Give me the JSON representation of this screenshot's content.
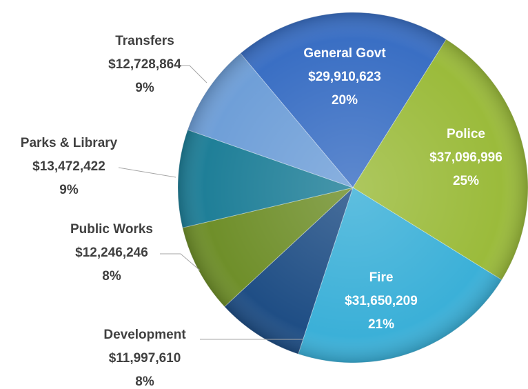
{
  "chart_data": {
    "type": "pie",
    "categories": [
      "General Govt",
      "Police",
      "Fire",
      "Development",
      "Public Works",
      "Parks & Library",
      "Transfers"
    ],
    "values": [
      29910623,
      37096996,
      31650209,
      11997610,
      12246246,
      13472422,
      12728864
    ],
    "value_labels": [
      "$29,910,623",
      "$37,096,996",
      "$31,650,209",
      "$11,997,610",
      "$12,246,246",
      "$13,472,422",
      "$12,728,864"
    ],
    "percent_labels": [
      "20%",
      "25%",
      "21%",
      "8%",
      "8%",
      "9%",
      "9%"
    ],
    "colors": [
      "#3a6fc4",
      "#9bbb3b",
      "#3bb0d8",
      "#1f4e85",
      "#6f8f2a",
      "#1f7f98",
      "#6f9fd8"
    ]
  }
}
